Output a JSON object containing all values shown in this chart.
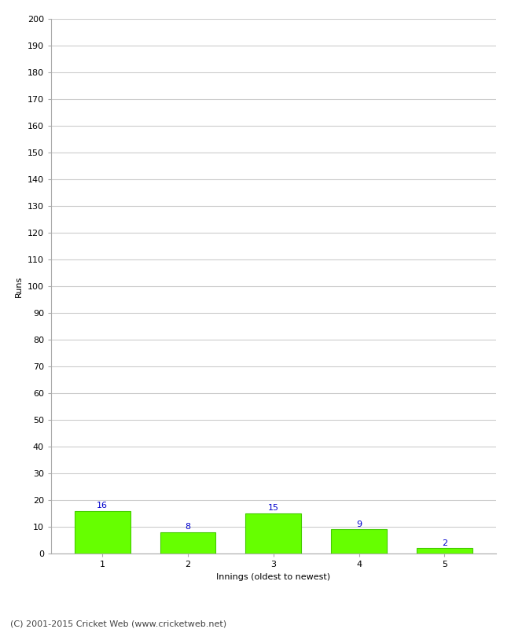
{
  "categories": [
    1,
    2,
    3,
    4,
    5
  ],
  "values": [
    16,
    8,
    15,
    9,
    2
  ],
  "bar_color": "#66ff00",
  "bar_edge_color": "#44cc00",
  "label_color": "#0000cc",
  "xlabel": "Innings (oldest to newest)",
  "ylabel": "Runs",
  "ylim": [
    0,
    200
  ],
  "yticks": [
    0,
    10,
    20,
    30,
    40,
    50,
    60,
    70,
    80,
    90,
    100,
    110,
    120,
    130,
    140,
    150,
    160,
    170,
    180,
    190,
    200
  ],
  "grid_color": "#cccccc",
  "background_color": "#ffffff",
  "footer": "(C) 2001-2015 Cricket Web (www.cricketweb.net)",
  "label_fontsize": 8,
  "axis_fontsize": 8,
  "tick_fontsize": 8,
  "footer_fontsize": 8,
  "bar_width": 0.65
}
